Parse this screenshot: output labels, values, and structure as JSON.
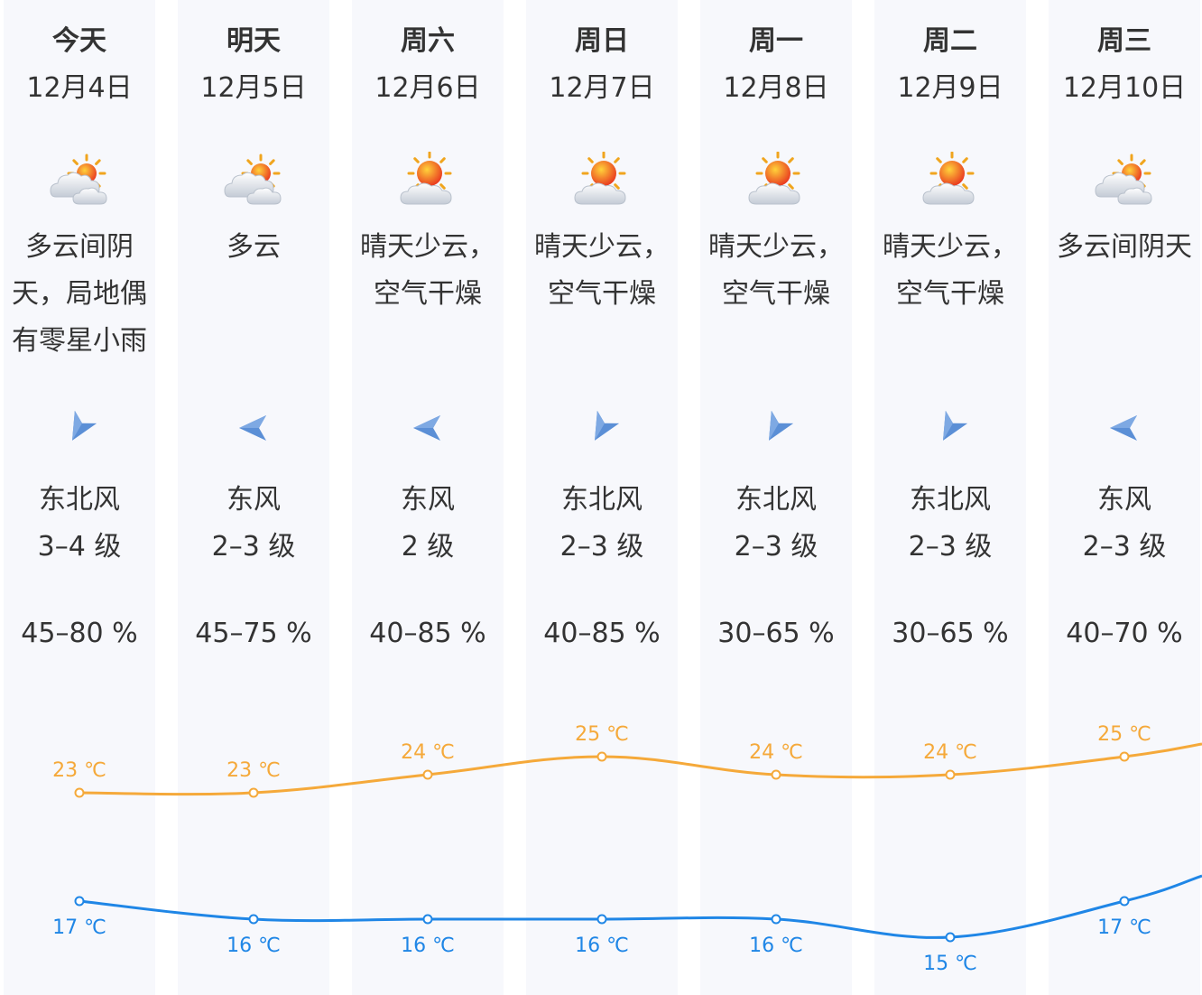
{
  "days": [
    {
      "name": "今天",
      "date": "12月4日",
      "icon": "cloudy-sun-icon",
      "desc": "多云间阴\n天，局地偶\n有零星小雨",
      "wind_arrow": "wind-arrow-northeast-icon",
      "wind_dir": "东北风",
      "wind_level": "3–4 级",
      "humidity": "45–80 %"
    },
    {
      "name": "明天",
      "date": "12月5日",
      "icon": "cloudy-sun-icon",
      "desc": "多云",
      "wind_arrow": "wind-arrow-east-icon",
      "wind_dir": "东风",
      "wind_level": "2–3 级",
      "humidity": "45–75 %"
    },
    {
      "name": "周六",
      "date": "12月6日",
      "icon": "sunny-few-clouds-icon",
      "desc": "晴天少云，\n空气干燥",
      "wind_arrow": "wind-arrow-east-icon",
      "wind_dir": "东风",
      "wind_level": "2 级",
      "humidity": "40–85 %"
    },
    {
      "name": "周日",
      "date": "12月7日",
      "icon": "sunny-few-clouds-icon",
      "desc": "晴天少云，\n空气干燥",
      "wind_arrow": "wind-arrow-northeast-icon",
      "wind_dir": "东北风",
      "wind_level": "2–3 级",
      "humidity": "40–85 %"
    },
    {
      "name": "周一",
      "date": "12月8日",
      "icon": "sunny-few-clouds-icon",
      "desc": "晴天少云，\n空气干燥",
      "wind_arrow": "wind-arrow-northeast-icon",
      "wind_dir": "东北风",
      "wind_level": "2–3 级",
      "humidity": "30–65 %"
    },
    {
      "name": "周二",
      "date": "12月9日",
      "icon": "sunny-few-clouds-icon",
      "desc": "晴天少云，\n空气干燥",
      "wind_arrow": "wind-arrow-northeast-icon",
      "wind_dir": "东北风",
      "wind_level": "2–3 级",
      "humidity": "30–65 %"
    },
    {
      "name": "周三",
      "date": "12月10日",
      "icon": "cloudy-sun-icon",
      "desc": "多云间阴天",
      "wind_arrow": "wind-arrow-east-icon",
      "wind_dir": "东风",
      "wind_level": "2–3 级",
      "humidity": "40–70 %"
    }
  ],
  "colors": {
    "high": "#f5a93a",
    "low": "#1f86e6",
    "column_bg": "#f7f8fc",
    "arrow": "#5b8fd6"
  },
  "chart_data": {
    "type": "line",
    "unit": "℃",
    "series": [
      {
        "key": "high",
        "values": [
          23,
          23,
          24,
          25,
          24,
          24,
          25
        ],
        "labels": [
          "23 ℃",
          "23 ℃",
          "24 ℃",
          "25 ℃",
          "24 ℃",
          "24 ℃",
          "25 ℃"
        ]
      },
      {
        "key": "low",
        "values": [
          17,
          16,
          16,
          16,
          16,
          15,
          17
        ],
        "labels": [
          "17 ℃",
          "16 ℃",
          "16 ℃",
          "16 ℃",
          "16 ℃",
          "15 ℃",
          "17 ℃"
        ]
      }
    ]
  }
}
